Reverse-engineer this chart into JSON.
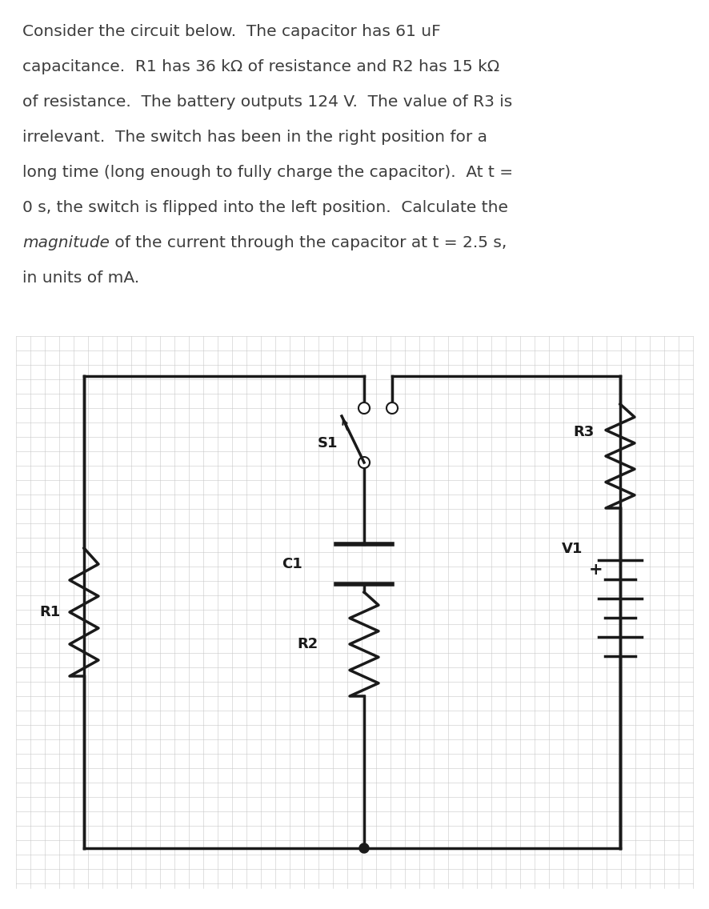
{
  "bg_color": "#ffffff",
  "grid_color": "#c8c8c8",
  "circuit_color": "#1a1a1a",
  "text_color": "#3d3d3d",
  "font_size": 14.5,
  "line1": "Consider the circuit below.  The capacitor has 61 uF",
  "line2": "capacitance.  R1 has 36 kΩ of resistance and R2 has 15 kΩ",
  "line3": "of resistance.  The battery outputs 124 V.  The value of R3 is",
  "line4": "irrelevant.  The switch has been in the right position for a",
  "line5": "long time (long enough to fully charge the capacitor).  At t =",
  "line6": "0 s, the switch is flipped into the left position.  Calculate the",
  "line7_italic": "magnitude",
  "line7_normal": " of the current through the capacitor at t = 2.5 s,",
  "line8": "in units of mA.",
  "label_R1": "R1",
  "label_R2": "R2",
  "label_R3": "R3",
  "label_C1": "C1",
  "label_S1": "S1",
  "label_V1": "V1"
}
